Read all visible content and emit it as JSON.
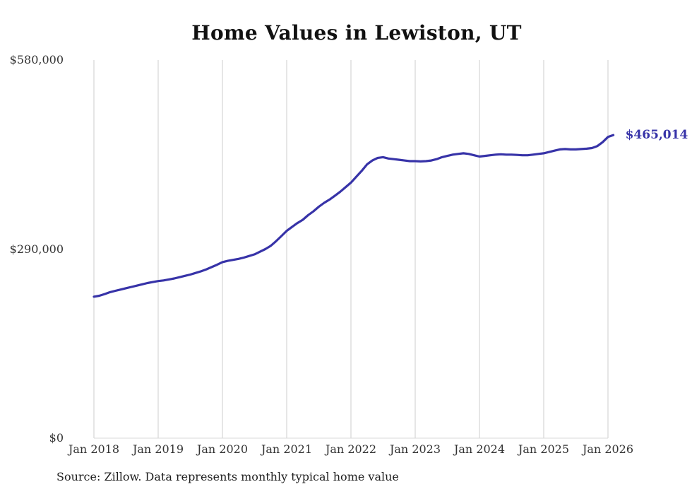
{
  "title": "Home Values in Lewiston, UT",
  "source": "Source: Zillow. Data represents monthly typical home value",
  "colors": {
    "line": "#3733a8",
    "grid": "#cccccc",
    "axis_line": "#d9d9d9",
    "axis_text": "#333333",
    "title_text": "#111111",
    "accent_label": "#3733a8"
  },
  "chart_data": {
    "type": "line",
    "title": "Home Values in Lewiston, UT",
    "xlabel": "",
    "ylabel": "",
    "ylim": [
      0,
      580000
    ],
    "grid": "vertical-only",
    "legend": "none",
    "x_start": "2018-01",
    "x_interval": "monthly",
    "x_tick_labels": [
      "Jan 2018",
      "Jan 2019",
      "Jan 2020",
      "Jan 2021",
      "Jan 2022",
      "Jan 2023",
      "Jan 2024",
      "Jan 2025",
      "Jan 2026"
    ],
    "y_ticks": [
      0,
      290000,
      580000
    ],
    "y_tick_labels": [
      "$0",
      "$290,000",
      "$580,000"
    ],
    "end_label": "$465,014",
    "series": [
      {
        "name": "Typical home value",
        "final_value": 465014,
        "values": [
          217000,
          218500,
          221000,
          224000,
          226000,
          228000,
          230000,
          232000,
          234000,
          236000,
          238000,
          239500,
          241000,
          242000,
          243500,
          245000,
          247000,
          249000,
          251000,
          253500,
          256000,
          259000,
          262500,
          266000,
          270000,
          272000,
          273500,
          275000,
          277000,
          279500,
          282000,
          286000,
          290000,
          295000,
          302000,
          310000,
          318000,
          324000,
          330000,
          335000,
          342000,
          348000,
          355000,
          361000,
          366000,
          372000,
          378000,
          385000,
          392000,
          401000,
          410000,
          420000,
          426000,
          430000,
          431000,
          429000,
          428000,
          427000,
          426000,
          425000,
          425000,
          424500,
          425000,
          426000,
          428000,
          431000,
          433000,
          435000,
          436000,
          437000,
          436000,
          434000,
          432000,
          433000,
          434000,
          435000,
          435500,
          435000,
          435000,
          434500,
          434000,
          434000,
          435000,
          436000,
          437000,
          439000,
          441000,
          443000,
          443500,
          443000,
          443000,
          443500,
          444000,
          445000,
          448000,
          454000,
          462000,
          465014
        ]
      }
    ]
  }
}
